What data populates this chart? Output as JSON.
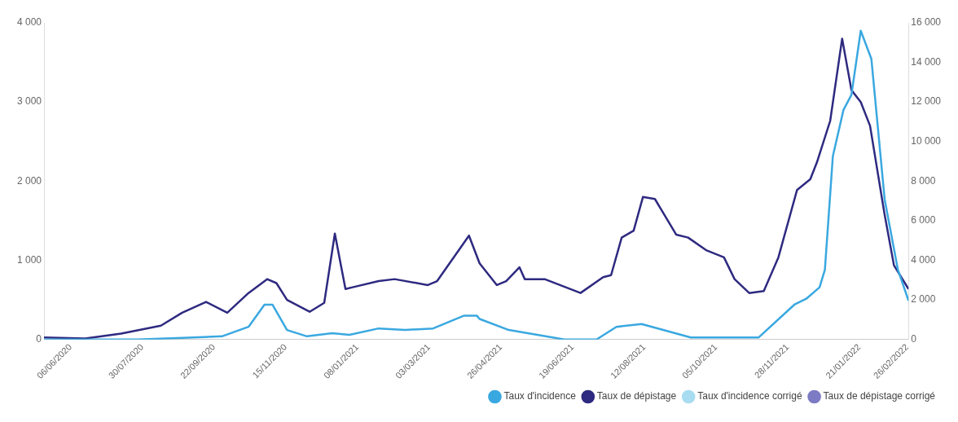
{
  "chart_data": {
    "type": "line",
    "xlim": [
      "2020-05-17",
      "2022-02-27"
    ],
    "xticks": [
      {
        "value": "2020-06-06",
        "label": "06/06/2020"
      },
      {
        "value": "2020-07-30",
        "label": "30/07/2020"
      },
      {
        "value": "2020-09-22",
        "label": "22/09/2020"
      },
      {
        "value": "2020-11-15",
        "label": "15/11/2020"
      },
      {
        "value": "2021-01-08",
        "label": "08/01/2021"
      },
      {
        "value": "2021-03-03",
        "label": "03/03/2021"
      },
      {
        "value": "2021-04-26",
        "label": "26/04/2021"
      },
      {
        "value": "2021-06-19",
        "label": "19/06/2021"
      },
      {
        "value": "2021-08-12",
        "label": "12/08/2021"
      },
      {
        "value": "2021-10-05",
        "label": "05/10/2021"
      },
      {
        "value": "2021-11-28",
        "label": "28/11/2021"
      },
      {
        "value": "2022-01-21",
        "label": "21/01/2022"
      },
      {
        "value": "2022-02-26",
        "label": "26/02/2022"
      }
    ],
    "ylim": [
      0,
      4000
    ],
    "yticks": [
      {
        "value": 0,
        "label": "0"
      },
      {
        "value": 1000,
        "label": "1 000"
      },
      {
        "value": 2000,
        "label": "2 000"
      },
      {
        "value": 3000,
        "label": "3 000"
      },
      {
        "value": 4000,
        "label": "4 000"
      }
    ],
    "y2lim": [
      0,
      16000
    ],
    "y2ticks": [
      {
        "value": 0,
        "label": "0"
      },
      {
        "value": 2000,
        "label": "2 000"
      },
      {
        "value": 4000,
        "label": "4 000"
      },
      {
        "value": 6000,
        "label": "6 000"
      },
      {
        "value": 8000,
        "label": "8 000"
      },
      {
        "value": 10000,
        "label": "10 000"
      },
      {
        "value": 12000,
        "label": "12 000"
      },
      {
        "value": 14000,
        "label": "14 000"
      },
      {
        "value": 16000,
        "label": "16 000"
      }
    ],
    "grid": false,
    "legend": "bottom right",
    "marker": "none",
    "series": [
      {
        "name": "Taux d'incidence",
        "color": "#3aa8e0",
        "x": [
          "2020-05-17",
          "2020-07-26",
          "2020-08-29",
          "2020-09-28",
          "2020-10-18",
          "2020-10-30",
          "2020-11-05",
          "2020-11-16",
          "2020-12-01",
          "2020-12-20",
          "2021-01-02",
          "2021-01-24",
          "2021-02-13",
          "2021-03-06",
          "2021-03-29",
          "2021-04-08",
          "2021-04-10",
          "2021-05-02",
          "2021-06-13",
          "2021-07-07",
          "2021-07-22",
          "2021-08-10",
          "2021-09-16",
          "2021-11-06",
          "2021-12-03",
          "2021-12-12",
          "2021-12-22",
          "2021-12-26",
          "2022-01-01",
          "2022-01-09",
          "2022-01-15",
          "2022-01-22",
          "2022-01-30",
          "2022-02-09",
          "2022-02-19",
          "2022-02-27"
        ],
        "values": [
          0,
          0,
          20,
          40,
          160,
          440,
          440,
          120,
          40,
          80,
          60,
          140,
          120,
          140,
          300,
          300,
          260,
          120,
          0,
          0,
          160,
          195,
          25,
          25,
          440,
          515,
          660,
          880,
          2315,
          2900,
          3090,
          3900,
          3545,
          1770,
          880,
          490
        ]
      },
      {
        "name": "Taux de dépistage",
        "color": "#2e2a80",
        "axis": "y2",
        "x": [
          "2020-05-17",
          "2020-06-17",
          "2020-07-14",
          "2020-08-13",
          "2020-08-29",
          "2020-09-16",
          "2020-10-02",
          "2020-10-18",
          "2020-11-01",
          "2020-11-08",
          "2020-11-16",
          "2020-12-03",
          "2020-12-14",
          "2020-12-22",
          "2020-12-30",
          "2021-01-05",
          "2021-01-24",
          "2021-02-05",
          "2021-03-02",
          "2021-03-09",
          "2021-04-02",
          "2021-04-10",
          "2021-04-23",
          "2021-04-30",
          "2021-05-10",
          "2021-05-14",
          "2021-05-29",
          "2021-06-25",
          "2021-07-12",
          "2021-07-18",
          "2021-07-26",
          "2021-08-04",
          "2021-08-11",
          "2021-08-20",
          "2021-09-05",
          "2021-09-14",
          "2021-09-28",
          "2021-10-11",
          "2021-10-19",
          "2021-10-30",
          "2021-11-10",
          "2021-11-21",
          "2021-12-05",
          "2021-12-15",
          "2021-12-20",
          "2021-12-30",
          "2022-01-08",
          "2022-01-15",
          "2022-01-22",
          "2022-01-29",
          "2022-02-09",
          "2022-02-16",
          "2022-02-27"
        ],
        "values": [
          100,
          50,
          300,
          700,
          1350,
          1900,
          1350,
          2350,
          3050,
          2850,
          2000,
          1400,
          1850,
          5350,
          2550,
          2650,
          2950,
          3050,
          2750,
          2950,
          5250,
          3850,
          2750,
          2950,
          3650,
          3050,
          3050,
          2350,
          3150,
          3250,
          5150,
          5500,
          7200,
          7100,
          5300,
          5150,
          4500,
          4150,
          3050,
          2350,
          2450,
          4150,
          7550,
          8100,
          8950,
          11050,
          15200,
          12600,
          12000,
          10800,
          6300,
          3750,
          2550
        ]
      },
      {
        "name": "Taux d'incidence corrigé",
        "color": "#a8dcf0"
      },
      {
        "name": "Taux de dépistage corrigé",
        "color": "#7d7bc4",
        "axis": "y2"
      }
    ]
  }
}
